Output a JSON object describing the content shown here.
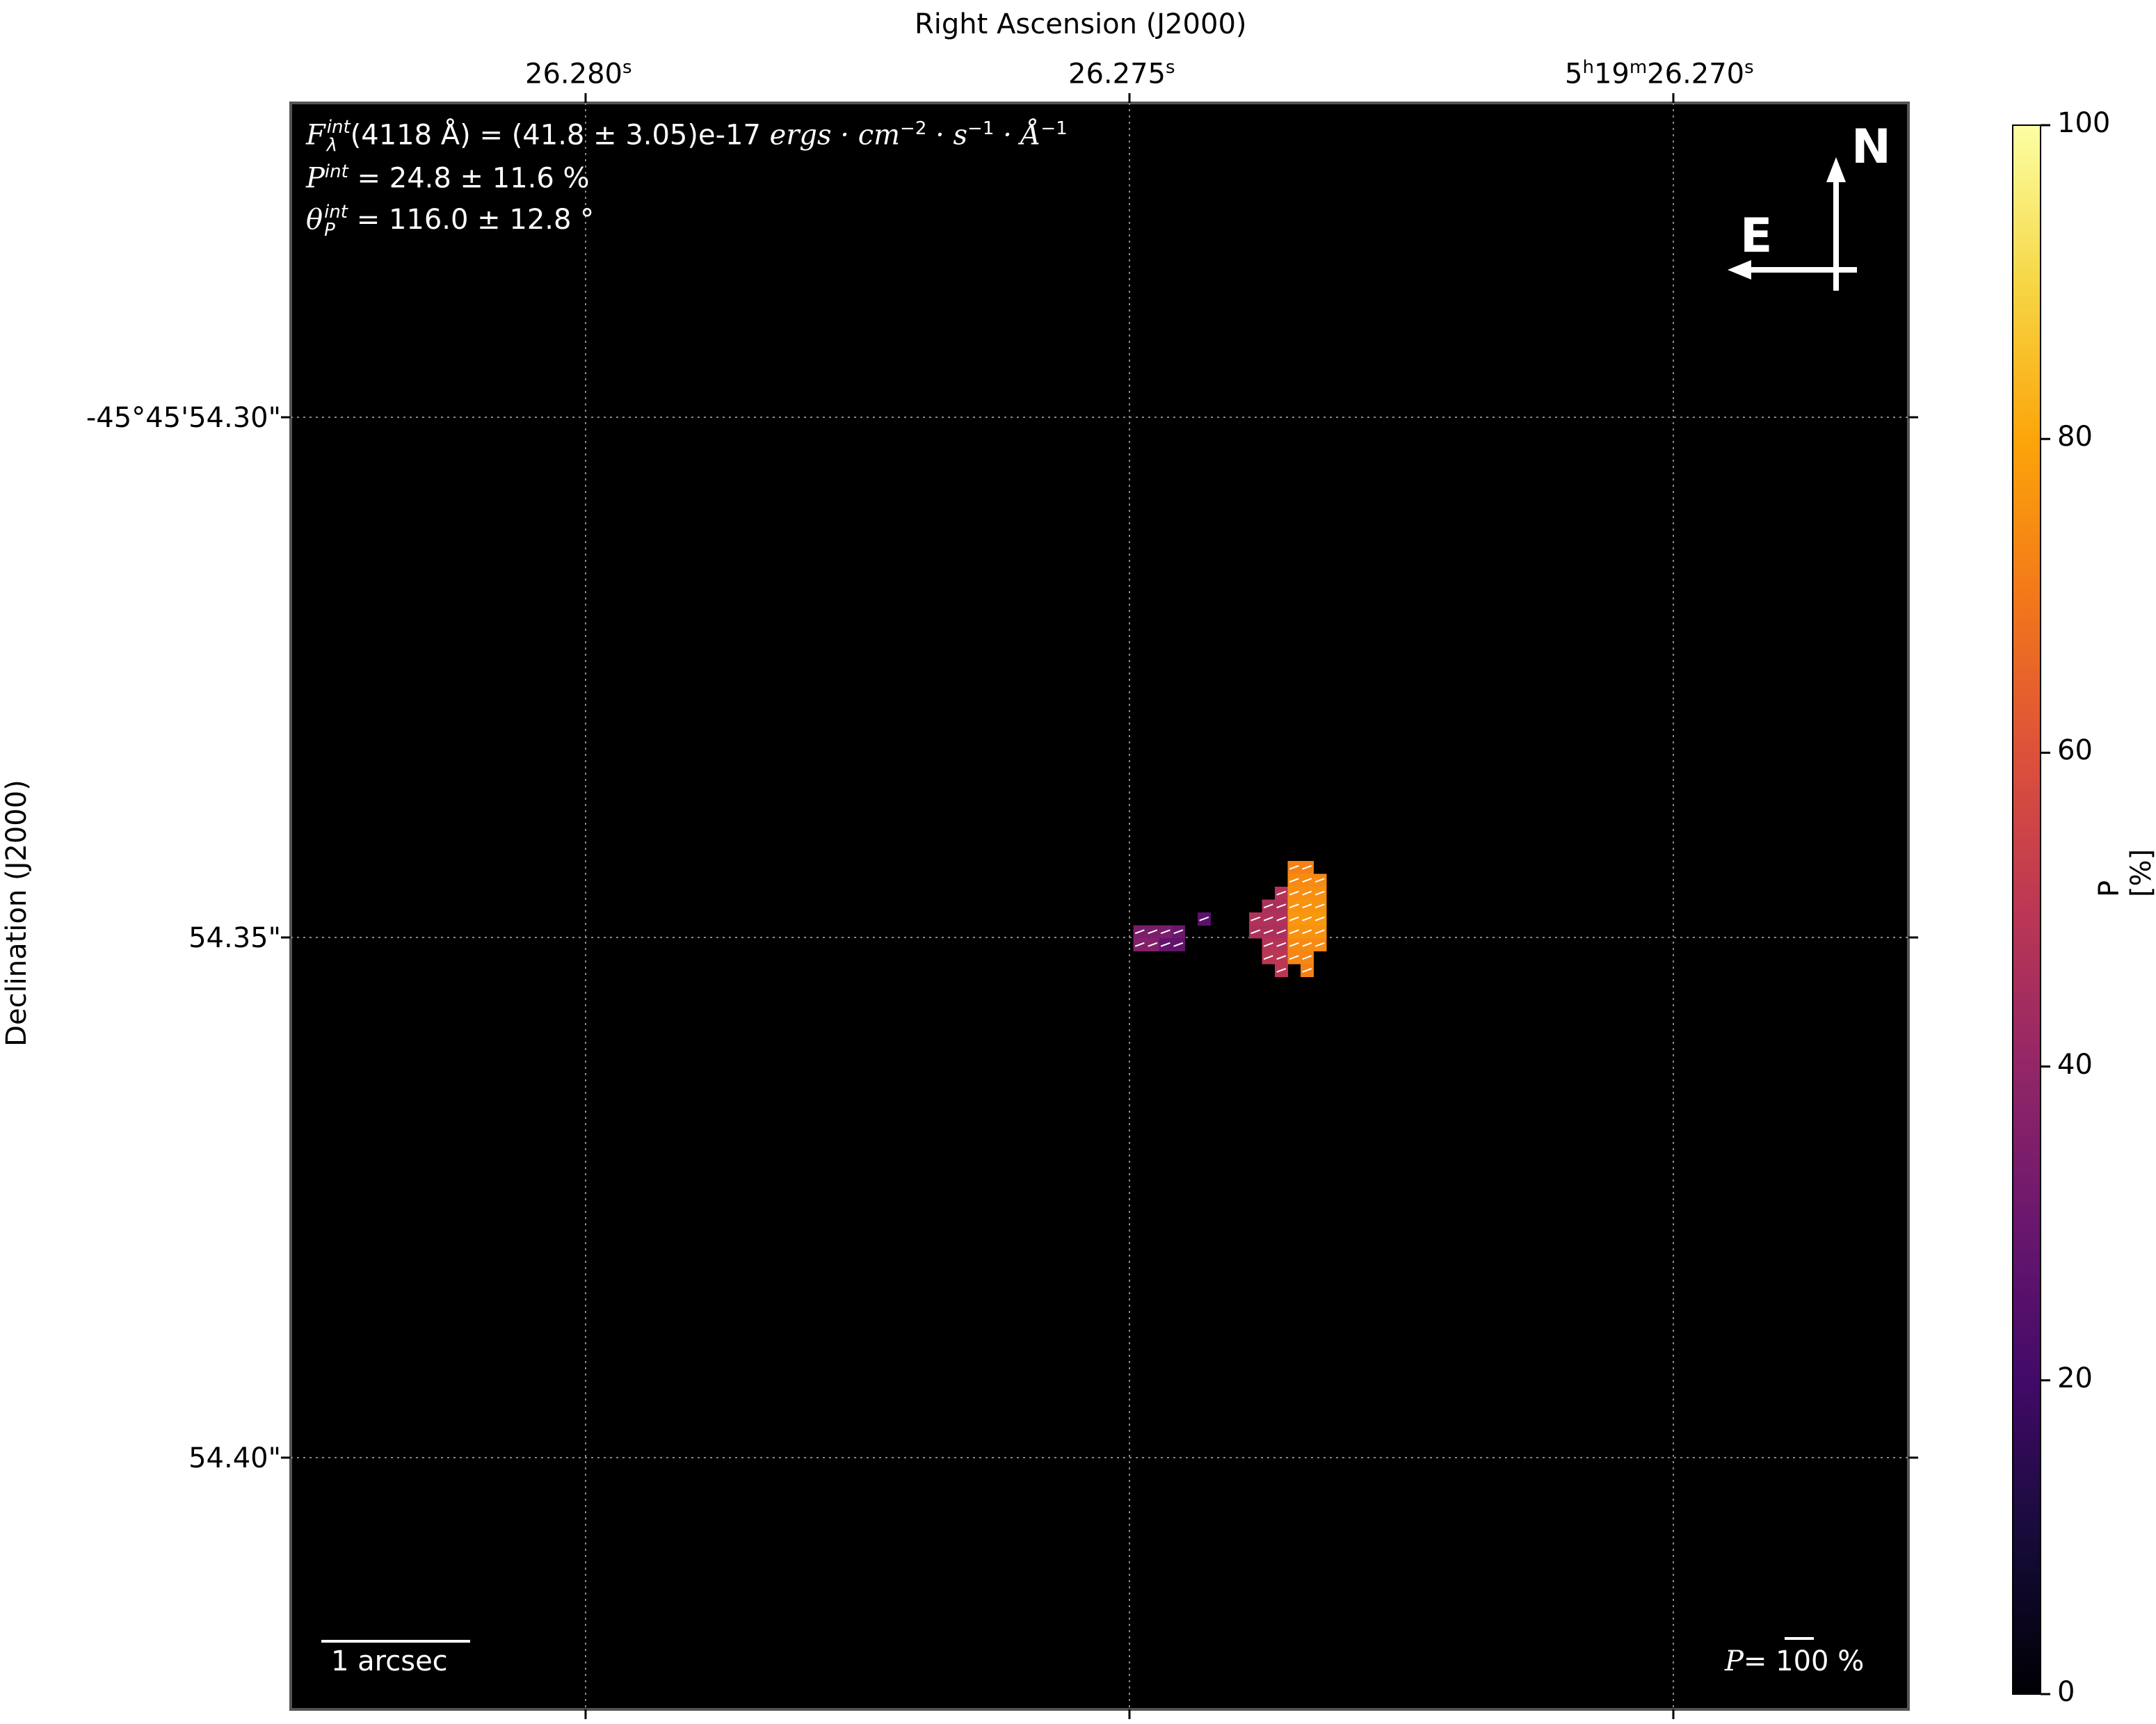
{
  "chart_data": {
    "type": "heatmap",
    "xlabel": "Right Ascension (J2000)",
    "ylabel": "Declination (J2000)",
    "x_ticks": [
      {
        "main": "26.280",
        "unit": "s"
      },
      {
        "main": "26.275",
        "unit": "s"
      },
      {
        "main": "5h19m26.270",
        "unit": "s",
        "prefix_h": "5",
        "sup_h": "h",
        "mid": "19",
        "sup_m": "m",
        "tail": "26.270"
      }
    ],
    "y_ticks": [
      "-45°45'54.30\"",
      "54.35\"",
      "54.40\""
    ],
    "colorbar": {
      "label": "P [%]",
      "ticks": [
        "0",
        "20",
        "40",
        "60",
        "80",
        "100"
      ],
      "range": [
        0,
        100
      ],
      "colormap": "inferno"
    },
    "annotations": {
      "flux_prefix": "F",
      "flux_sup": "int",
      "flux_sub": "λ",
      "flux_text": "(4118 Å) = (41.8 ± 3.05)e-17 ",
      "flux_units": "ergs · cm",
      "flux_units_exp1": "−2",
      "flux_units_mid": " · s",
      "flux_units_exp2": "−1",
      "flux_units_end": " · Å",
      "flux_units_exp3": "−1",
      "p_prefix": "P",
      "p_sup": "int",
      "p_text": " = 24.8 ± 11.6 %",
      "theta_prefix": "θ",
      "theta_sup": "int",
      "theta_sub": "P",
      "theta_text": " = 116.0 ± 12.8 °",
      "compass_n": "N",
      "compass_e": "E",
      "scalebar": "1 arcsec",
      "pref_prefix": "P",
      "pref_text": "= 100 %"
    },
    "grid": true,
    "background": "#000000",
    "pixels": [
      {
        "row": 0,
        "cols": [
          7,
          8
        ],
        "p": 72
      },
      {
        "row": 1,
        "cols": [
          7,
          8,
          9
        ],
        "p": 74
      },
      {
        "row": 2,
        "cols": [
          6
        ],
        "p": 48
      },
      {
        "row": 2,
        "cols": [
          7,
          8,
          9
        ],
        "p": 75
      },
      {
        "row": 3,
        "cols": [
          5,
          6
        ],
        "p": 46
      },
      {
        "row": 3,
        "cols": [
          7,
          8,
          9
        ],
        "p": 76
      },
      {
        "row": 4,
        "cols": [
          0
        ],
        "p": 26
      },
      {
        "row": 4,
        "cols": [
          4,
          5,
          6
        ],
        "p": 47
      },
      {
        "row": 4,
        "cols": [
          7,
          8,
          9
        ],
        "p": 77
      },
      {
        "row": 5,
        "cols": [
          -5,
          -4,
          -3
        ],
        "p": 34
      },
      {
        "row": 5,
        "cols": [
          -2
        ],
        "p": 30
      },
      {
        "row": 5,
        "cols": [
          4,
          5,
          6
        ],
        "p": 46
      },
      {
        "row": 5,
        "cols": [
          7,
          8,
          9
        ],
        "p": 76
      },
      {
        "row": 6,
        "cols": [
          -5,
          -4
        ],
        "p": 36
      },
      {
        "row": 6,
        "cols": [
          -3,
          -2
        ],
        "p": 28
      },
      {
        "row": 6,
        "cols": [
          5,
          6
        ],
        "p": 48
      },
      {
        "row": 6,
        "cols": [
          7,
          8,
          9
        ],
        "p": 74
      },
      {
        "row": 7,
        "cols": [
          5,
          6
        ],
        "p": 50
      },
      {
        "row": 7,
        "cols": [
          7,
          8
        ],
        "p": 73
      },
      {
        "row": 8,
        "cols": [
          6
        ],
        "p": 50
      },
      {
        "row": 8,
        "cols": [
          8
        ],
        "p": 72
      }
    ]
  }
}
